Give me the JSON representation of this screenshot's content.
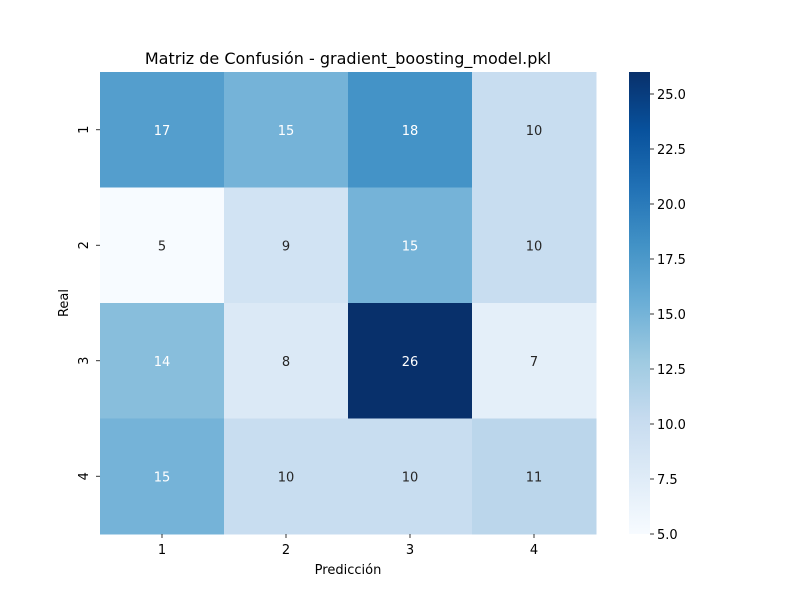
{
  "chart_data": {
    "type": "heatmap",
    "title": "Matriz de Confusión - gradient_boosting_model.pkl",
    "xlabel": "Predicción",
    "ylabel": "Real",
    "x_categories": [
      "1",
      "2",
      "3",
      "4"
    ],
    "y_categories": [
      "1",
      "2",
      "3",
      "4"
    ],
    "values": [
      [
        17,
        15,
        18,
        10
      ],
      [
        5,
        9,
        15,
        10
      ],
      [
        14,
        8,
        26,
        7
      ],
      [
        15,
        10,
        10,
        11
      ]
    ],
    "colorbar": {
      "range": [
        5,
        26
      ],
      "ticks": [
        "5.0",
        "7.5",
        "10.0",
        "12.5",
        "15.0",
        "17.5",
        "20.0",
        "22.5",
        "25.0"
      ],
      "colormap": "Blues"
    }
  },
  "colors": {
    "blues_scale": [
      "#f7fbff",
      "#deebf7",
      "#c6dbef",
      "#9ecae1",
      "#6baed6",
      "#4292c6",
      "#2171b5",
      "#08519c",
      "#08306b"
    ],
    "text_dark": "#262626",
    "text_light": "#ffffff"
  }
}
